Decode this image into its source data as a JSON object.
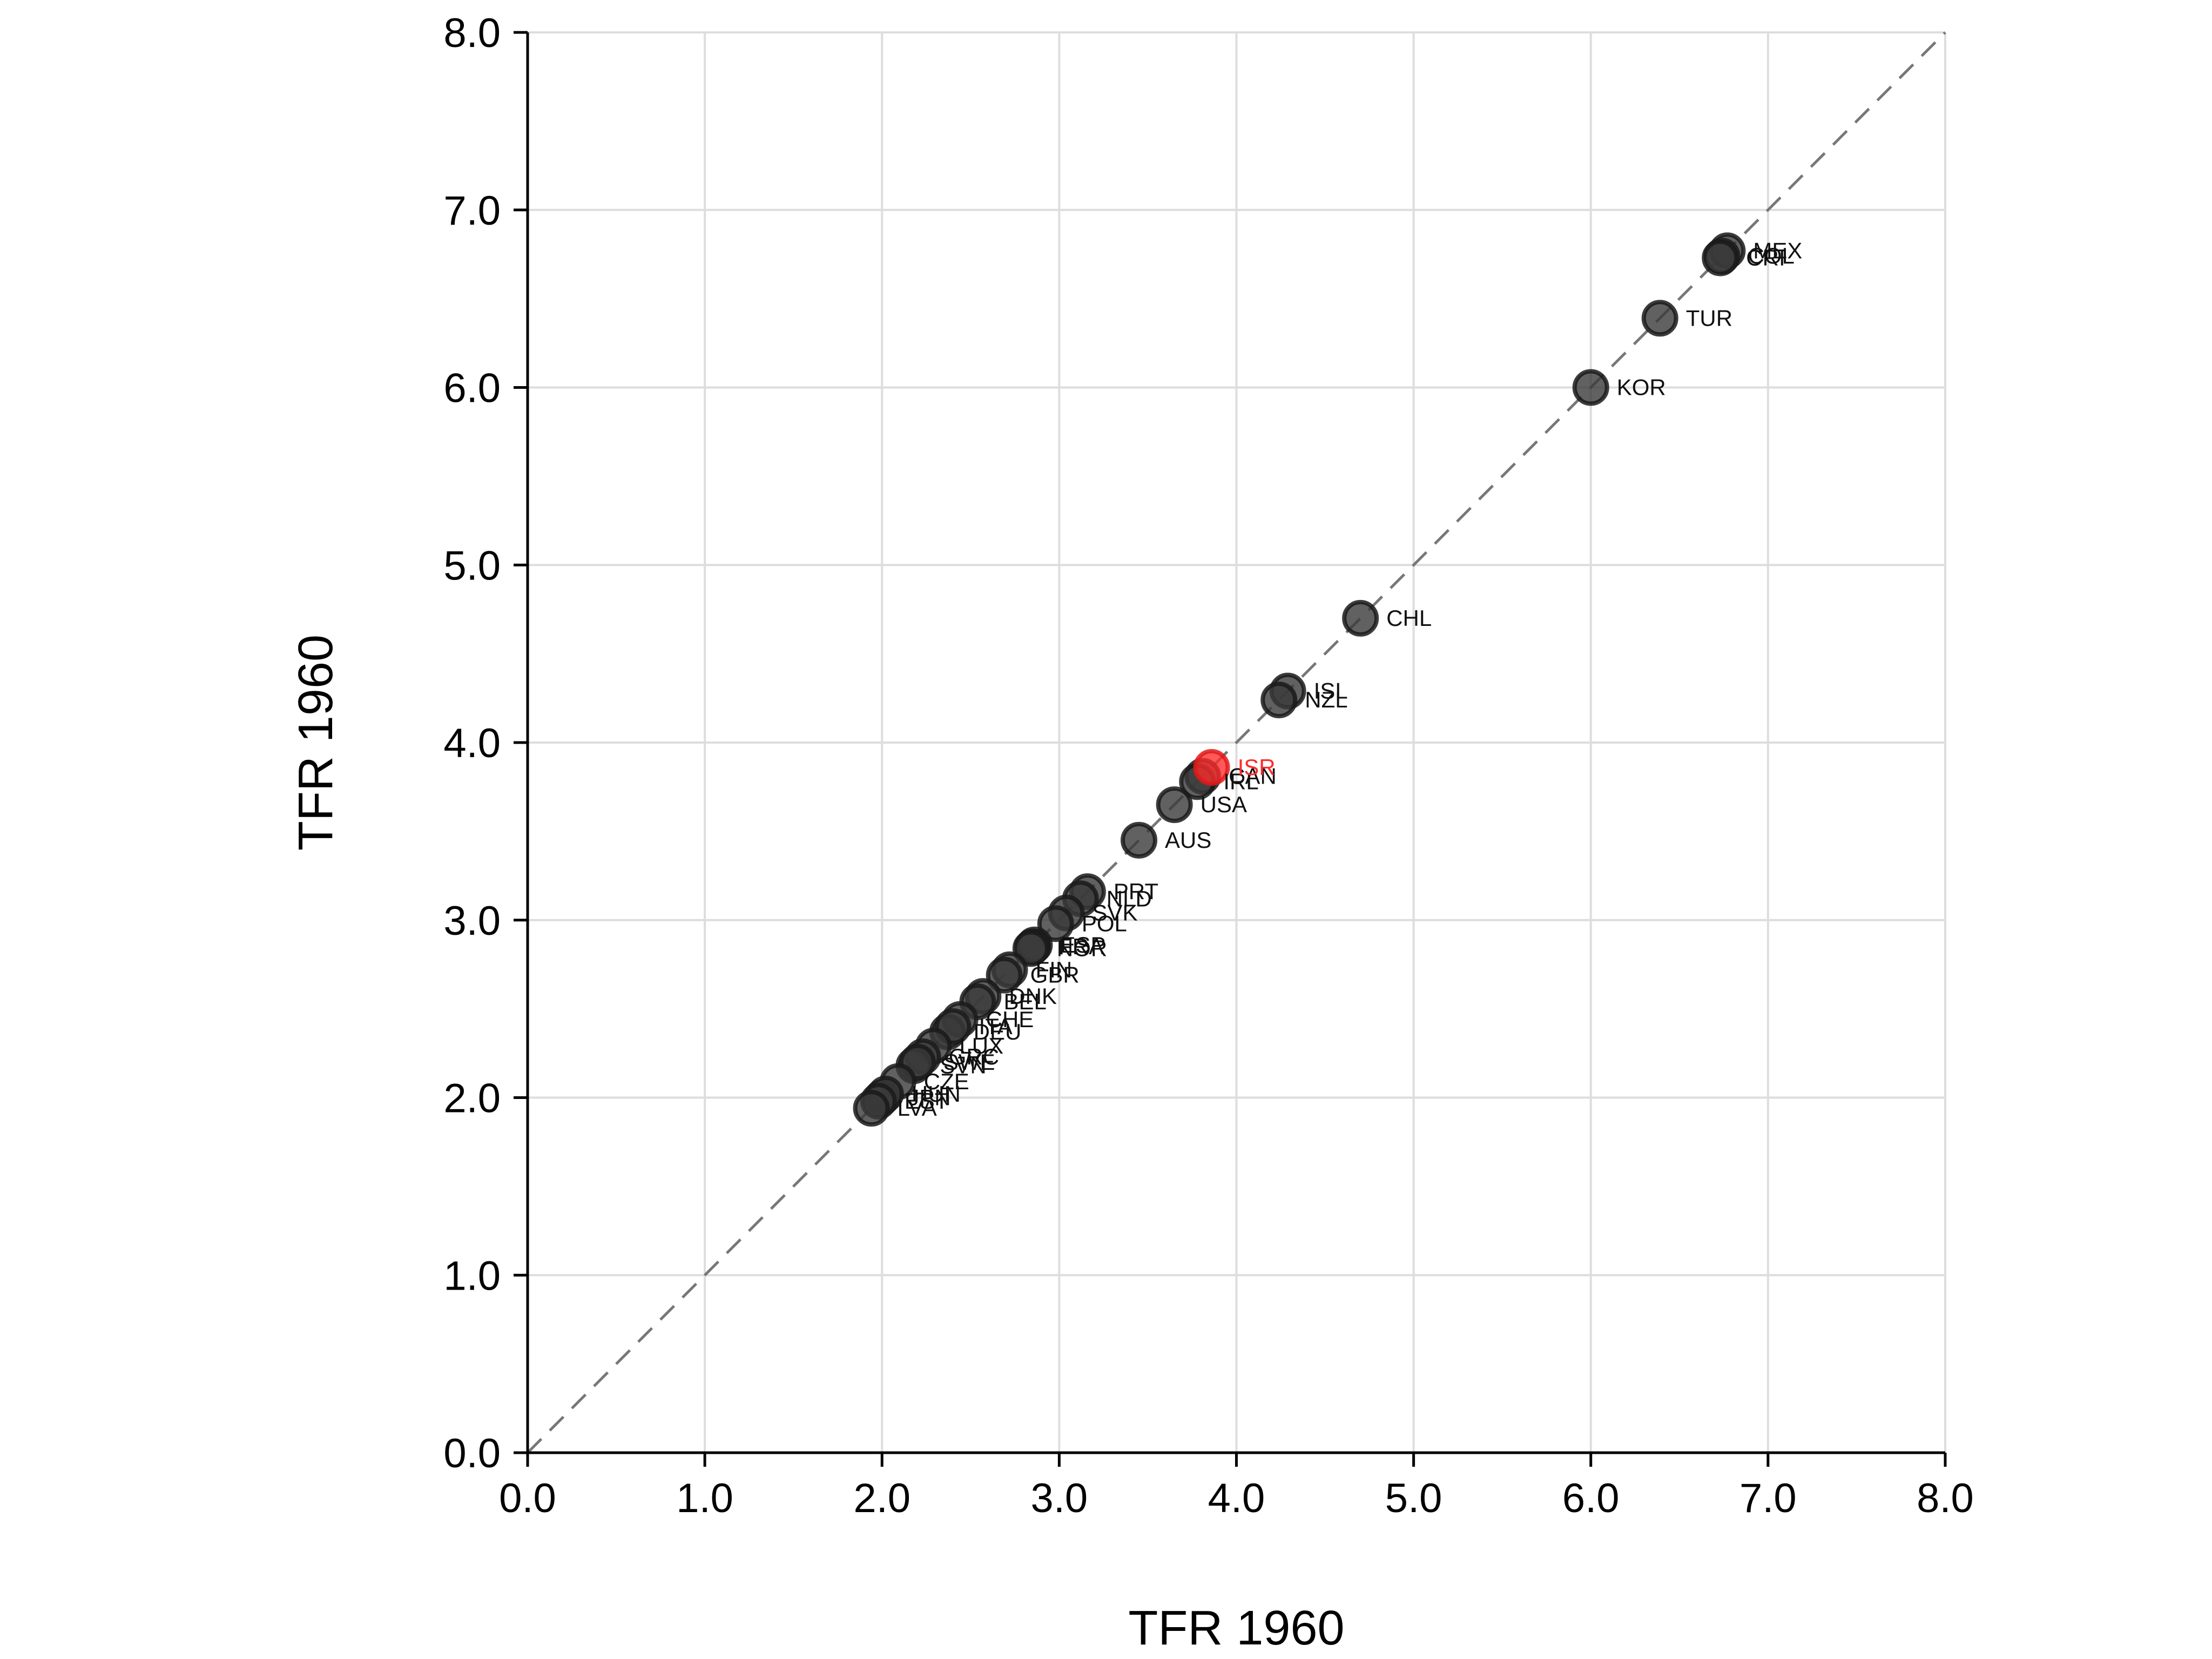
{
  "chart_data": {
    "type": "scatter",
    "title": "",
    "xlabel": "TFR 1960",
    "ylabel": "TFR 1960",
    "xlim": [
      0,
      8
    ],
    "ylim": [
      0,
      8
    ],
    "xticks": [
      "0.0",
      "1.0",
      "2.0",
      "3.0",
      "4.0",
      "5.0",
      "6.0",
      "7.0",
      "8.0"
    ],
    "yticks": [
      "0.0",
      "1.0",
      "2.0",
      "3.0",
      "4.0",
      "5.0",
      "6.0",
      "7.0",
      "8.0"
    ],
    "grid": true,
    "reference_line": "y = x",
    "colors": {
      "point": "#3a3a3a",
      "highlight": "#ff2a2a",
      "grid": "#dddddd",
      "reference": "#777777"
    },
    "points": [
      {
        "label": "MEX",
        "x": 6.77,
        "y": 6.77
      },
      {
        "label": "COL",
        "x": 6.74,
        "y": 6.74
      },
      {
        "label": "CRI",
        "x": 6.73,
        "y": 6.73
      },
      {
        "label": "TUR",
        "x": 6.39,
        "y": 6.39
      },
      {
        "label": "KOR",
        "x": 6.0,
        "y": 6.0
      },
      {
        "label": "CHL",
        "x": 4.7,
        "y": 4.7
      },
      {
        "label": "ISL",
        "x": 4.29,
        "y": 4.29
      },
      {
        "label": "NZL",
        "x": 4.24,
        "y": 4.24
      },
      {
        "label": "ISR",
        "x": 3.86,
        "y": 3.86,
        "highlight": true
      },
      {
        "label": "CAN",
        "x": 3.81,
        "y": 3.81
      },
      {
        "label": "IRL",
        "x": 3.78,
        "y": 3.78
      },
      {
        "label": "USA",
        "x": 3.65,
        "y": 3.65
      },
      {
        "label": "AUS",
        "x": 3.45,
        "y": 3.45
      },
      {
        "label": "PRT",
        "x": 3.16,
        "y": 3.16
      },
      {
        "label": "NLD",
        "x": 3.12,
        "y": 3.12
      },
      {
        "label": "SVK",
        "x": 3.04,
        "y": 3.04
      },
      {
        "label": "POL",
        "x": 2.98,
        "y": 2.98
      },
      {
        "label": "ESP",
        "x": 2.86,
        "y": 2.86
      },
      {
        "label": "FRA",
        "x": 2.85,
        "y": 2.85
      },
      {
        "label": "NOR",
        "x": 2.84,
        "y": 2.84
      },
      {
        "label": "FIN",
        "x": 2.72,
        "y": 2.72
      },
      {
        "label": "GBR",
        "x": 2.69,
        "y": 2.69
      },
      {
        "label": "DNK",
        "x": 2.57,
        "y": 2.57
      },
      {
        "label": "BEL",
        "x": 2.54,
        "y": 2.54
      },
      {
        "label": "CHE",
        "x": 2.44,
        "y": 2.44
      },
      {
        "label": "DEU",
        "x": 2.37,
        "y": 2.37
      },
      {
        "label": "ITA",
        "x": 2.4,
        "y": 2.4
      },
      {
        "label": "LUX",
        "x": 2.29,
        "y": 2.29
      },
      {
        "label": "GRC",
        "x": 2.23,
        "y": 2.23
      },
      {
        "label": "SVN",
        "x": 2.18,
        "y": 2.18
      },
      {
        "label": "SWE",
        "x": 2.2,
        "y": 2.2
      },
      {
        "label": "CZE",
        "x": 2.09,
        "y": 2.09
      },
      {
        "label": "JPN",
        "x": 2.0,
        "y": 2.0
      },
      {
        "label": "HUN",
        "x": 2.02,
        "y": 2.02
      },
      {
        "label": "EST",
        "x": 1.98,
        "y": 1.98
      },
      {
        "label": "LVA",
        "x": 1.94,
        "y": 1.94
      }
    ]
  }
}
